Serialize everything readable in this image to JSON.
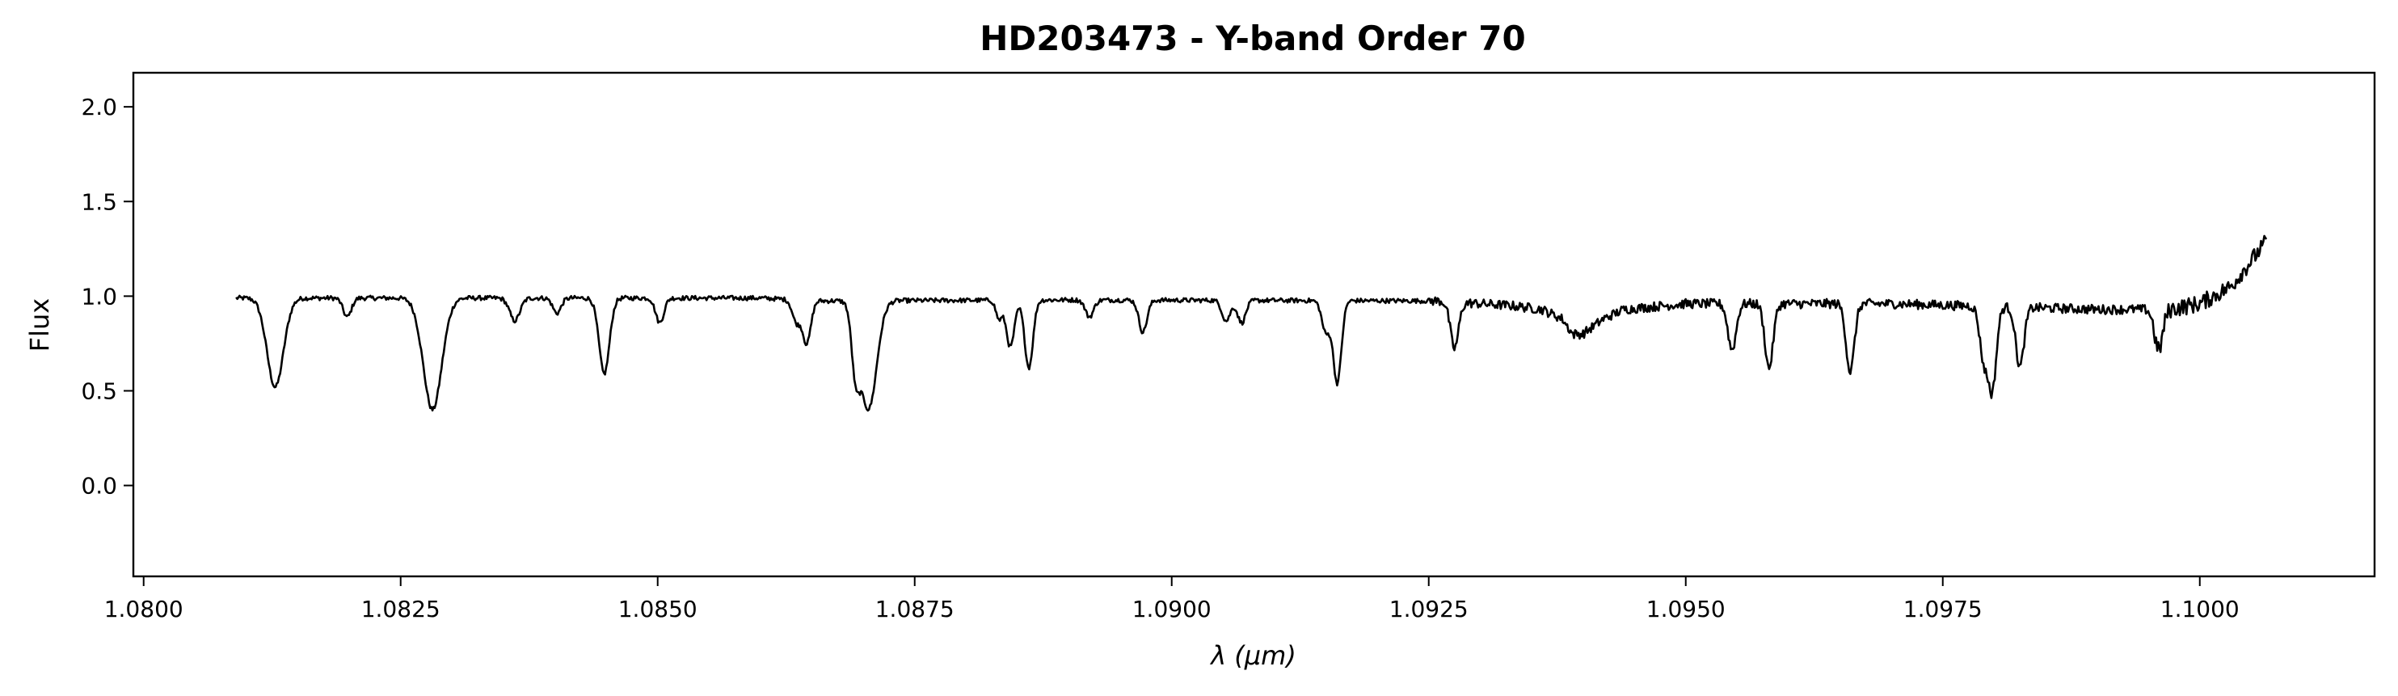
{
  "chart_data": {
    "type": "line",
    "title": "HD203473 - Y-band Order 70",
    "xlabel": "λ (μm)",
    "ylabel": "Flux",
    "xlim": [
      1.0799,
      1.1017
    ],
    "ylim": [
      -0.48,
      2.18
    ],
    "x_ticks": [
      {
        "value": 1.08,
        "label": "1.0800"
      },
      {
        "value": 1.0825,
        "label": "1.0825"
      },
      {
        "value": 1.085,
        "label": "1.0850"
      },
      {
        "value": 1.0875,
        "label": "1.0875"
      },
      {
        "value": 1.09,
        "label": "1.0900"
      },
      {
        "value": 1.0925,
        "label": "1.0925"
      },
      {
        "value": 1.095,
        "label": "1.0950"
      },
      {
        "value": 1.0975,
        "label": "1.0975"
      },
      {
        "value": 1.1,
        "label": "1.1000"
      }
    ],
    "y_ticks": [
      {
        "value": 0.0,
        "label": "0.0"
      },
      {
        "value": 0.5,
        "label": "0.5"
      },
      {
        "value": 1.0,
        "label": "1.0"
      },
      {
        "value": 1.5,
        "label": "1.5"
      },
      {
        "value": 2.0,
        "label": "2.0"
      }
    ],
    "grid": false,
    "legend": "none",
    "series": [
      {
        "color": "#000000",
        "x_start": 1.0809,
        "x_end": 1.10065,
        "continuum": [
          [
            1.0809,
            0.99
          ],
          [
            1.083,
            0.99
          ],
          [
            1.086,
            0.99
          ],
          [
            1.0866,
            0.975
          ],
          [
            1.089,
            0.98
          ],
          [
            1.0926,
            0.975
          ],
          [
            1.093,
            0.96
          ],
          [
            1.0933,
            0.95
          ],
          [
            1.0936,
            0.93
          ],
          [
            1.0938,
            0.88
          ],
          [
            1.0939,
            0.8
          ],
          [
            1.094,
            0.8
          ],
          [
            1.0942,
            0.88
          ],
          [
            1.0944,
            0.93
          ],
          [
            1.095,
            0.96
          ],
          [
            1.097,
            0.96
          ],
          [
            1.099,
            0.93
          ],
          [
            1.0997,
            0.93
          ],
          [
            1.1,
            0.96
          ],
          [
            1.1003,
            1.05
          ],
          [
            1.10065,
            1.29
          ]
        ],
        "absorption_lines": [
          {
            "center": 1.08128,
            "min": 0.52,
            "width": 8e-05
          },
          {
            "center": 1.08198,
            "min": 0.89,
            "width": 4e-05
          },
          {
            "center": 1.08281,
            "min": 0.4,
            "width": 9e-05
          },
          {
            "center": 1.08361,
            "min": 0.87,
            "width": 5e-05
          },
          {
            "center": 1.08402,
            "min": 0.91,
            "width": 4e-05
          },
          {
            "center": 1.08448,
            "min": 0.59,
            "width": 5e-05
          },
          {
            "center": 1.08502,
            "min": 0.86,
            "width": 4e-05
          },
          {
            "center": 1.08635,
            "min": 0.87,
            "width": 4e-05
          },
          {
            "center": 1.08645,
            "min": 0.76,
            "width": 4e-05
          },
          {
            "center": 1.08693,
            "min": 0.63,
            "width": 4e-05
          },
          {
            "center": 1.08705,
            "min": 0.41,
            "width": 8e-05
          },
          {
            "center": 1.08832,
            "min": 0.89,
            "width": 3e-05
          },
          {
            "center": 1.08843,
            "min": 0.74,
            "width": 4e-05
          },
          {
            "center": 1.08861,
            "min": 0.63,
            "width": 4e-05
          },
          {
            "center": 1.0892,
            "min": 0.9,
            "width": 4e-05
          },
          {
            "center": 1.08972,
            "min": 0.82,
            "width": 4e-05
          },
          {
            "center": 1.09053,
            "min": 0.88,
            "width": 4e-05
          },
          {
            "center": 1.09068,
            "min": 0.87,
            "width": 4e-05
          },
          {
            "center": 1.0915,
            "min": 0.82,
            "width": 4e-05
          },
          {
            "center": 1.09161,
            "min": 0.55,
            "width": 4e-05
          },
          {
            "center": 1.09275,
            "min": 0.74,
            "width": 4e-05
          },
          {
            "center": 1.09545,
            "min": 0.74,
            "width": 4e-05
          },
          {
            "center": 1.09581,
            "min": 0.64,
            "width": 4e-05
          },
          {
            "center": 1.0966,
            "min": 0.62,
            "width": 4e-05
          },
          {
            "center": 1.0979,
            "min": 0.7,
            "width": 4e-05
          },
          {
            "center": 1.09798,
            "min": 0.53,
            "width": 4e-05
          },
          {
            "center": 1.09825,
            "min": 0.66,
            "width": 4e-05
          },
          {
            "center": 1.0996,
            "min": 0.76,
            "width": 4e-05
          }
        ]
      }
    ]
  }
}
